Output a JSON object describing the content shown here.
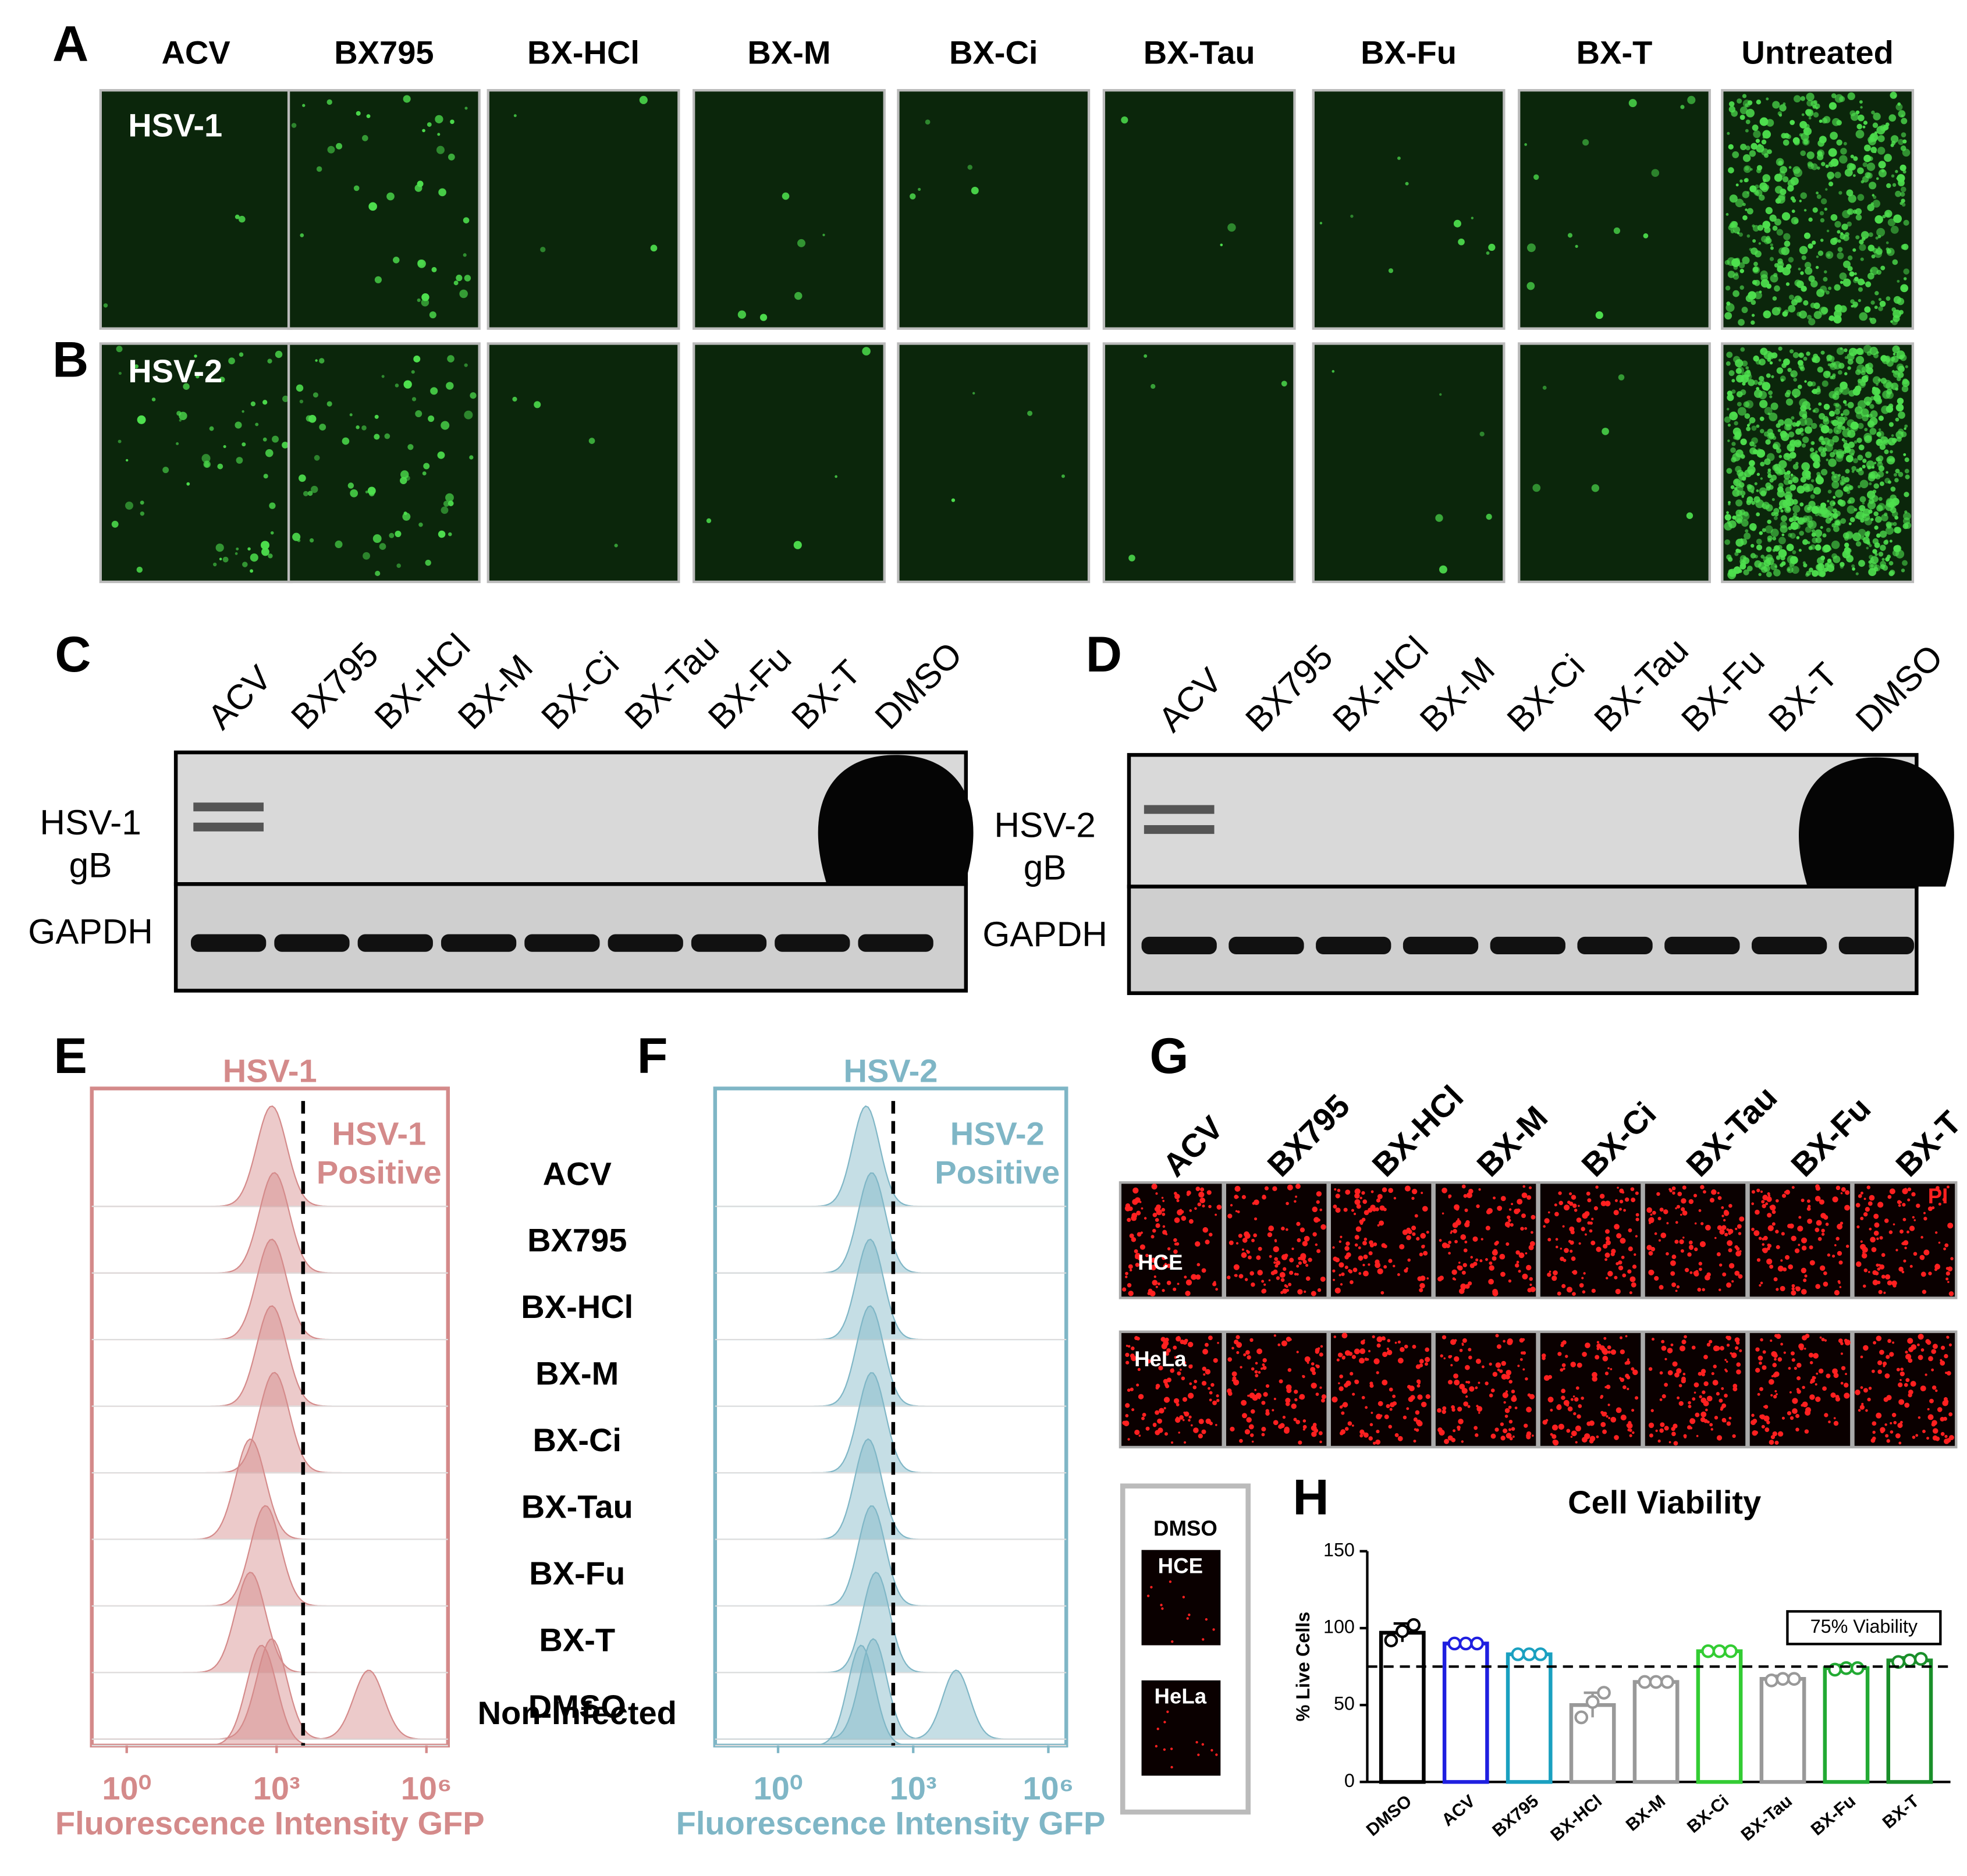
{
  "panel_labels": [
    "A",
    "B",
    "C",
    "D",
    "E",
    "F",
    "G",
    "H"
  ],
  "fluorescence": {
    "columns": [
      "ACV",
      "BX795",
      "BX-HCl",
      "BX-M",
      "BX-Ci",
      "BX-Tau",
      "BX-Fu",
      "BX-T",
      "Untreated"
    ],
    "rows": [
      "HSV-1",
      "HSV-2"
    ]
  },
  "western_c": {
    "lanes": [
      "ACV",
      "BX795",
      "BX-HCl",
      "BX-M",
      "BX-Ci",
      "BX-Tau",
      "BX-Fu",
      "BX-T",
      "DMSO"
    ],
    "target": [
      "HSV-1",
      "gB"
    ],
    "control": "GAPDH"
  },
  "western_d": {
    "lanes": [
      "ACV",
      "BX795",
      "BX-HCl",
      "BX-M",
      "BX-Ci",
      "BX-Tau",
      "BX-Fu",
      "BX-T",
      "DMSO"
    ],
    "target": [
      "HSV-2",
      "gB"
    ],
    "control": "GAPDH"
  },
  "pi_staining": {
    "columns": [
      "ACV",
      "BX795",
      "BX-HCl",
      "BX-M",
      "BX-Ci",
      "BX-Tau",
      "BX-Fu",
      "BX-T"
    ],
    "rows": [
      "HCE",
      "HeLa"
    ],
    "stain": "PI",
    "control": {
      "title": "DMSO",
      "rows": [
        "HCE",
        "HeLa"
      ]
    }
  },
  "chart_data": [
    {
      "type": "ridgeline",
      "title": "HSV-1",
      "annotation": [
        "HSV-1",
        "Positive"
      ],
      "xlabel": "Fluorescence Intensity GFP",
      "xscale": "log",
      "xlim": [
        0.2,
        2700000
      ],
      "xticks": [
        {
          "value": 1,
          "label": "10⁰"
        },
        {
          "value": 1000,
          "label": "10³"
        },
        {
          "value": 1000000,
          "label": "10⁶"
        }
      ],
      "threshold": 3400,
      "color": "#d48a8a",
      "categories": [
        "ACV",
        "BX795",
        "BX-HCl",
        "BX-M",
        "BX-Ci",
        "BX-Tau",
        "BX-Fu",
        "BX-T",
        "DMSO",
        "Non-Infected"
      ],
      "peaks": [
        [
          800
        ],
        [
          900
        ],
        [
          800
        ],
        [
          800
        ],
        [
          900
        ],
        [
          300
        ],
        [
          600
        ],
        [
          300
        ],
        [
          800,
          70000
        ],
        [
          500
        ]
      ]
    },
    {
      "type": "ridgeline",
      "title": "HSV-2",
      "annotation": [
        "HSV-2",
        "Positive"
      ],
      "xlabel": "Fluorescence Intensity GFP",
      "xscale": "log",
      "xlim": [
        0.04,
        2500000
      ],
      "xticks": [
        {
          "value": 1,
          "label": "10⁰"
        },
        {
          "value": 1000,
          "label": "10³"
        },
        {
          "value": 1000000,
          "label": "10⁶"
        }
      ],
      "threshold": 360,
      "color": "#7fb6c6",
      "peaks": [
        [
          90
        ],
        [
          120
        ],
        [
          110
        ],
        [
          110
        ],
        [
          120
        ],
        [
          100
        ],
        [
          120
        ],
        [
          150
        ],
        [
          130,
          9000
        ],
        [
          70
        ]
      ]
    },
    {
      "type": "bar",
      "title": "Cell  Viability",
      "ylabel": "% Live Cells",
      "categories": [
        "DMSO",
        "ACV",
        "BX795",
        "BX-HCl",
        "BX-M",
        "BX-Ci",
        "BX-Tau",
        "BX-Fu",
        "BX-T"
      ],
      "values": [
        97,
        90,
        83,
        50,
        65,
        85,
        67,
        74,
        79
      ],
      "errors": [
        6,
        1,
        1,
        8,
        1,
        1,
        2,
        2,
        2
      ],
      "points": [
        [
          92,
          98,
          102
        ],
        [
          90,
          90,
          90
        ],
        [
          83,
          83,
          83
        ],
        [
          42,
          52,
          58
        ],
        [
          65,
          65,
          65
        ],
        [
          85,
          85,
          85
        ],
        [
          66,
          67,
          67
        ],
        [
          73,
          74,
          74
        ],
        [
          78,
          79,
          80
        ]
      ],
      "colors": [
        "#000000",
        "#1f1fe0",
        "#1aa0c0",
        "#999999",
        "#999999",
        "#33cc33",
        "#999999",
        "#22aa33",
        "#1a8f2a"
      ],
      "ylim": [
        0,
        150
      ],
      "yticks": [
        0,
        50,
        100,
        150
      ],
      "threshold": 75,
      "threshold_label": "75%  Viability"
    }
  ]
}
